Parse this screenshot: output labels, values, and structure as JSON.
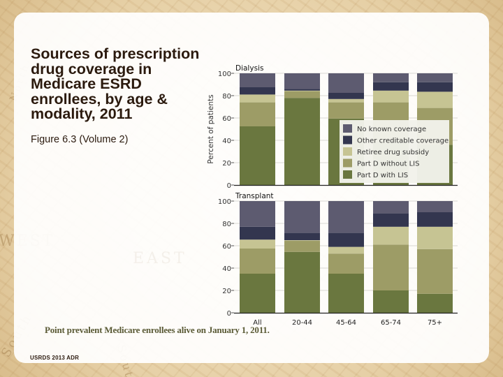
{
  "slide": {
    "title": "Sources of prescription drug coverage in Medicare ESRD enrollees, by age & modality, 2011",
    "subtitle": "Figure 6.3 (Volume 2)",
    "note": "Point prevalent Medicare enrollees alive on January 1, 2011.",
    "source": "USRDS 2013 ADR",
    "background_words": [
      "WEST",
      "EAST",
      "South",
      "South",
      "North",
      "East"
    ]
  },
  "chart_data": {
    "type": "bar",
    "stacked": true,
    "ylabel": "Percent of patients",
    "xlabel": "",
    "ylim": [
      0,
      100
    ],
    "yticks": [
      0,
      20,
      40,
      60,
      80,
      100
    ],
    "grid": true,
    "categories": [
      "All",
      "20-44",
      "45-64",
      "65-74",
      "75+"
    ],
    "legend": {
      "placement": "inside-right of Dialysis panel",
      "entries": [
        {
          "name": "No known coverage",
          "color": "#5d5b70"
        },
        {
          "name": "Other creditable coverage",
          "color": "#33364f"
        },
        {
          "name": "Retiree drug subsidy",
          "color": "#c6c493"
        },
        {
          "name": "Part D without LIS",
          "color": "#9d9c66"
        },
        {
          "name": "Part D with LIS",
          "color": "#6a773f"
        }
      ]
    },
    "panels": [
      {
        "title": "Dialysis",
        "series": [
          {
            "name": "Part D with LIS",
            "values": [
              52.5,
              78,
              59.5,
              38,
              36
            ]
          },
          {
            "name": "Part D without LIS",
            "values": [
              21.5,
              6,
              14.5,
              36,
              33
            ]
          },
          {
            "name": "Retiree drug subsidy",
            "values": [
              7,
              0.5,
              3,
              10.5,
              14.5
            ]
          },
          {
            "name": "Other creditable coverage",
            "values": [
              6.5,
              1.5,
              5.5,
              7.5,
              8.5
            ]
          },
          {
            "name": "No known coverage",
            "values": [
              12.5,
              14,
              17.5,
              8,
              8
            ]
          }
        ]
      },
      {
        "title": "Transplant",
        "series": [
          {
            "name": "Part D with LIS",
            "values": [
              35,
              54.5,
              35,
              20,
              17
            ]
          },
          {
            "name": "Part D without LIS",
            "values": [
              22.5,
              10,
              18,
              41,
              40
            ]
          },
          {
            "name": "Retiree drug subsidy",
            "values": [
              8,
              0.5,
              6,
              16,
              20
            ]
          },
          {
            "name": "Other creditable coverage",
            "values": [
              11.5,
              6.5,
              12.5,
              12,
              13
            ]
          },
          {
            "name": "No known coverage",
            "values": [
              23,
              28.5,
              28.5,
              11,
              10
            ]
          }
        ]
      }
    ]
  }
}
